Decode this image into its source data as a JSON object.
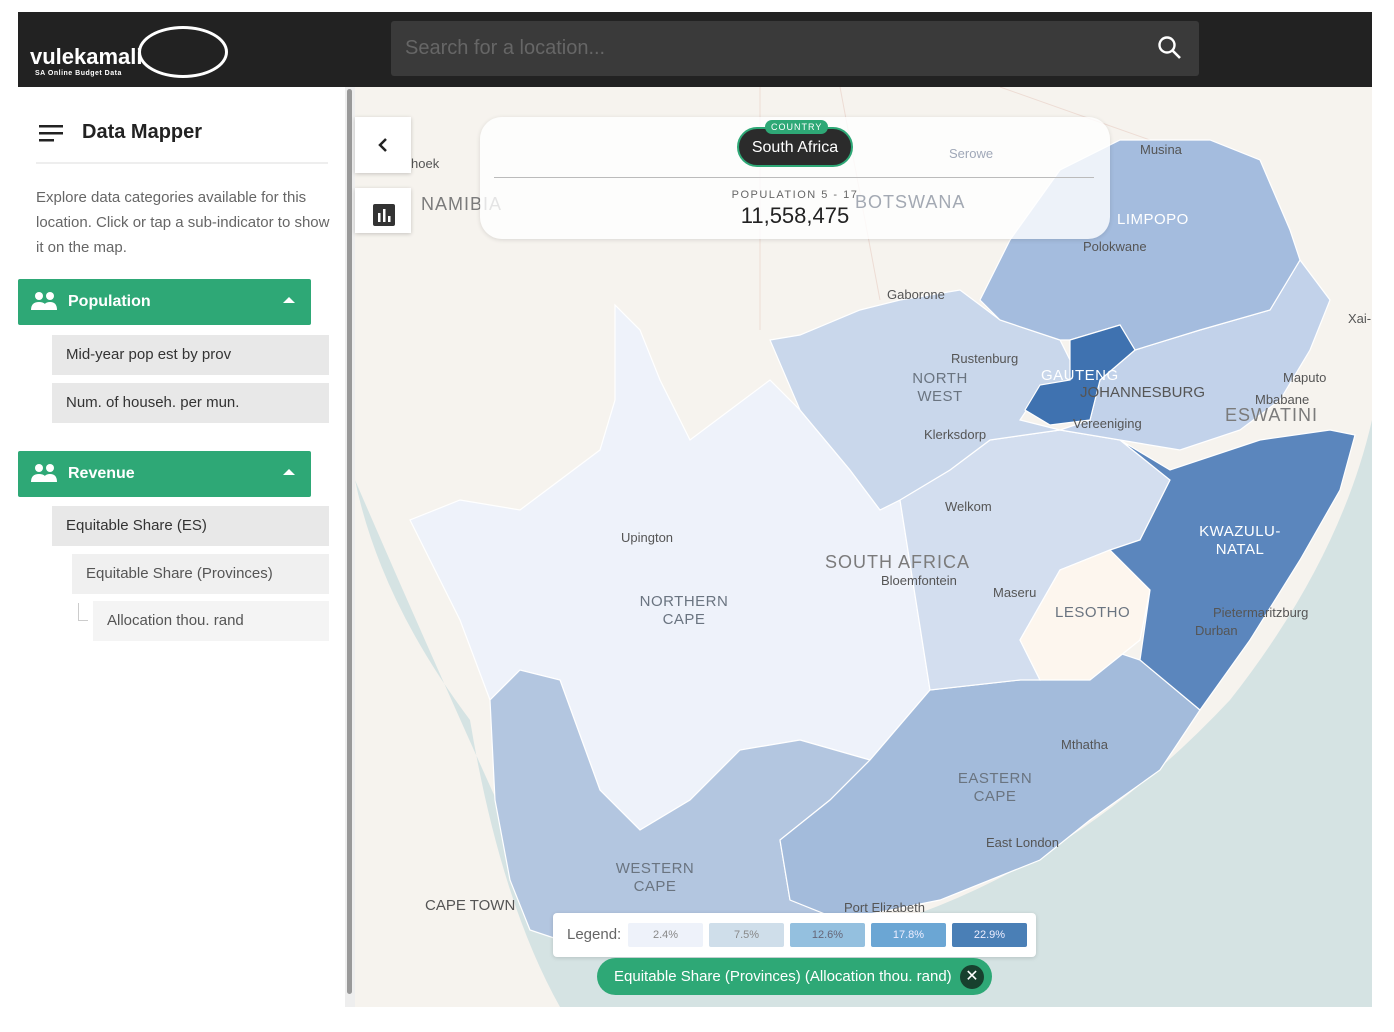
{
  "header": {
    "logo_text": "vulekamali",
    "logo_tagline": "SA Online Budget Data",
    "search_placeholder": "Search for a location..."
  },
  "sidebar": {
    "title": "Data Mapper",
    "description": "Explore data categories available for this location. Click or tap a sub-indicator to show it on the map.",
    "categories": [
      {
        "label": "Population",
        "items": [
          "Mid-year pop est by prov",
          "Num. of househ. per mun."
        ]
      },
      {
        "label": "Revenue",
        "items": [
          "Equitable Share (ES)"
        ],
        "subitems": [
          "Equitable Share (Provinces)"
        ],
        "subsubitems": [
          "Allocation thou. rand"
        ]
      }
    ]
  },
  "info": {
    "tag": "COUNTRY",
    "name": "South Africa",
    "metric_label": "POPULATION 5 - 17",
    "metric_value": "11,558,475"
  },
  "map": {
    "country_labels": [
      "NAMIBIA",
      "BOTSWANA",
      "SOUTH AFRICA",
      "ESWATINI",
      "LESOTHO"
    ],
    "province_labels": [
      "LIMPOPO",
      "NORTH WEST",
      "GAUTENG",
      "KWAZULU-NATAL",
      "NORTHERN CAPE",
      "WESTERN CAPE",
      "EASTERN CAPE"
    ],
    "cities": [
      "hoek",
      "Serowe",
      "Musina",
      "Polokwane",
      "Gaborone",
      "Xai-",
      "Rustenburg",
      "JOHANNESBURG",
      "Maputo",
      "Mbabane",
      "Vereeniging",
      "Klerksdorp",
      "Welkom",
      "Upington",
      "Bloemfontein",
      "Maseru",
      "Pietermaritzburg",
      "Durban",
      "Mthatha",
      "East London",
      "CAPE TOWN",
      "Port Elizabeth"
    ],
    "province_colors": {
      "northern_cape": "#eef2fa",
      "western_cape": "#b3c6e0",
      "eastern_cape": "#a3bbdb",
      "free_state": "#d3deef",
      "lesotho": "#fdf6ee",
      "kwazulu_natal": "#5b86bd",
      "north_west": "#c9d7eb",
      "gauteng": "#3f72b0",
      "mpumalanga": "#c2d2ea",
      "limpopo": "#a4bcde"
    }
  },
  "legend": {
    "label": "Legend:",
    "items": [
      {
        "value": "2.4%",
        "color": "#eef2fa"
      },
      {
        "value": "7.5%",
        "color": "#cfdeea"
      },
      {
        "value": "12.6%",
        "color": "#94c0df"
      },
      {
        "value": "17.8%",
        "color": "#6ba6d4"
      },
      {
        "value": "22.9%",
        "color": "#4a7fb6"
      }
    ]
  },
  "active_indicator": {
    "label": "Equitable Share (Provinces) (Allocation thou. rand)"
  }
}
